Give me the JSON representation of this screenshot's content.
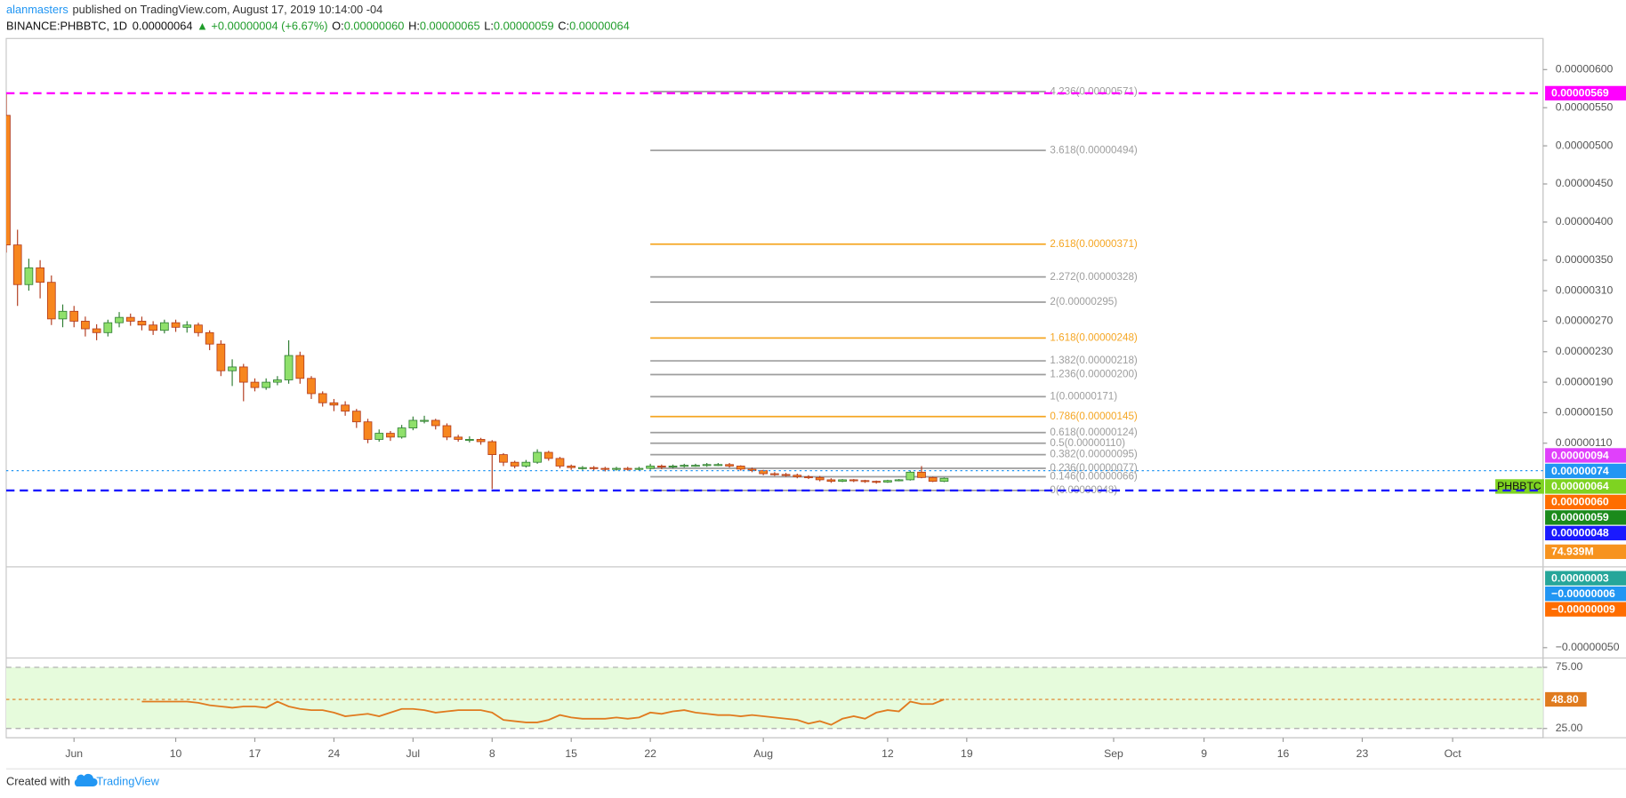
{
  "header": {
    "author": "alanmasters",
    "published": "published on TradingView.com, August 17, 2019 10:14:00 -04",
    "symbol": "BINANCE:PHBBTC, 1D",
    "last": "0.00000064",
    "change": "▲ +0.00000004 (+6.67%)",
    "o_label": "O:",
    "o": "0.00000060",
    "h_label": "H:",
    "h": "0.00000065",
    "l_label": "L:",
    "l": "0.00000059",
    "c_label": "C:",
    "c": "0.00000064"
  },
  "footer": {
    "created": "Created with",
    "brand": "TradingView"
  },
  "chart_data": [
    {
      "type": "candlestick",
      "x": [
        "2019-05-26",
        "2019-05-27",
        "2019-05-28",
        "2019-05-29",
        "2019-05-30",
        "2019-05-31",
        "2019-06-01",
        "2019-06-02",
        "2019-06-03",
        "2019-06-04",
        "2019-06-05",
        "2019-06-06",
        "2019-06-07",
        "2019-06-08",
        "2019-06-09",
        "2019-06-10",
        "2019-06-11",
        "2019-06-12",
        "2019-06-13",
        "2019-06-14",
        "2019-06-15",
        "2019-06-16",
        "2019-06-17",
        "2019-06-18",
        "2019-06-19",
        "2019-06-20",
        "2019-06-21",
        "2019-06-22",
        "2019-06-23",
        "2019-06-24",
        "2019-06-25",
        "2019-06-26",
        "2019-06-27",
        "2019-06-28",
        "2019-06-29",
        "2019-06-30",
        "2019-07-01",
        "2019-07-02",
        "2019-07-03",
        "2019-07-04",
        "2019-07-05",
        "2019-07-06",
        "2019-07-07",
        "2019-07-08",
        "2019-07-09",
        "2019-07-10",
        "2019-07-11",
        "2019-07-12",
        "2019-07-13",
        "2019-07-14",
        "2019-07-15",
        "2019-07-16",
        "2019-07-17",
        "2019-07-18",
        "2019-07-19",
        "2019-07-20",
        "2019-07-21",
        "2019-07-22",
        "2019-07-23",
        "2019-07-24",
        "2019-07-25",
        "2019-07-26",
        "2019-07-27",
        "2019-07-28",
        "2019-07-29",
        "2019-07-30",
        "2019-07-31",
        "2019-08-01",
        "2019-08-02",
        "2019-08-03",
        "2019-08-04",
        "2019-08-05",
        "2019-08-06",
        "2019-08-07",
        "2019-08-08",
        "2019-08-09",
        "2019-08-10",
        "2019-08-11",
        "2019-08-12",
        "2019-08-13",
        "2019-08-14",
        "2019-08-15",
        "2019-08-16",
        "2019-08-17"
      ],
      "open": [
        5.4e-06,
        3.7e-06,
        3.18e-06,
        3.4e-06,
        3.21e-06,
        2.73e-06,
        2.83e-06,
        2.7e-06,
        2.6e-06,
        2.55e-06,
        2.68e-06,
        2.75e-06,
        2.7e-06,
        2.65e-06,
        2.58e-06,
        2.68e-06,
        2.62e-06,
        2.65e-06,
        2.55e-06,
        2.4e-06,
        2.05e-06,
        2.1e-06,
        1.9e-06,
        1.83e-06,
        1.9e-06,
        1.93e-06,
        2.25e-06,
        1.95e-06,
        1.75e-06,
        1.63e-06,
        1.6e-06,
        1.52e-06,
        1.38e-06,
        1.15e-06,
        1.23e-06,
        1.18e-06,
        1.3e-06,
        1.4e-06,
        1.4e-06,
        1.33e-06,
        1.18e-06,
        1.15e-06,
        1.15e-06,
        1.12e-06,
        9.5e-07,
        8.5e-07,
        8e-07,
        8.5e-07,
        9.8e-07,
        9e-07,
        8e-07,
        7.8e-07,
        7.8e-07,
        7.7e-07,
        7.6e-07,
        7.7e-07,
        7.6e-07,
        7.7e-07,
        8e-07,
        7.9e-07,
        8e-07,
        8.1e-07,
        8.1e-07,
        8.2e-07,
        8.2e-07,
        8e-07,
        7.6e-07,
        7.4e-07,
        7e-07,
        6.9e-07,
        6.8e-07,
        6.6e-07,
        6.5e-07,
        6.2e-07,
        6e-07,
        6.2e-07,
        6.1e-07,
        6e-07,
        5.9e-07,
        6.1e-07,
        6.2e-07,
        7.2e-07,
        6.5e-07,
        6e-07
      ],
      "high": [
        5.69e-06,
        3.9e-06,
        3.52e-06,
        3.5e-06,
        3.3e-06,
        2.92e-06,
        2.9e-06,
        2.76e-06,
        2.66e-06,
        2.72e-06,
        2.82e-06,
        2.8e-06,
        2.76e-06,
        2.7e-06,
        2.72e-06,
        2.72e-06,
        2.7e-06,
        2.68e-06,
        2.58e-06,
        2.45e-06,
        2.2e-06,
        2.14e-06,
        1.95e-06,
        1.95e-06,
        1.98e-06,
        2.45e-06,
        2.3e-06,
        1.98e-06,
        1.78e-06,
        1.68e-06,
        1.65e-06,
        1.55e-06,
        1.42e-06,
        1.28e-06,
        1.26e-06,
        1.34e-06,
        1.45e-06,
        1.46e-06,
        1.42e-06,
        1.36e-06,
        1.21e-06,
        1.19e-06,
        1.17e-06,
        1.14e-06,
        9.7e-07,
        8.7e-07,
        8.8e-07,
        1.02e-06,
        1e-06,
        9.2e-07,
        8.2e-07,
        8e-07,
        8e-07,
        7.9e-07,
        7.9e-07,
        7.9e-07,
        7.9e-07,
        8.3e-07,
        8.2e-07,
        8.2e-07,
        8.3e-07,
        8.3e-07,
        8.4e-07,
        8.4e-07,
        8.4e-07,
        8.1e-07,
        7.8e-07,
        7.5e-07,
        7.2e-07,
        7.1e-07,
        7e-07,
        6.8e-07,
        6.7e-07,
        6.4e-07,
        6.3e-07,
        6.3e-07,
        6.2e-07,
        6.1e-07,
        6.2e-07,
        6.3e-07,
        7.4e-07,
        8e-07,
        6.6e-07,
        6.5e-07
      ],
      "low": [
        3.6e-06,
        2.9e-06,
        3.1e-06,
        3e-06,
        2.65e-06,
        2.62e-06,
        2.62e-06,
        2.5e-06,
        2.45e-06,
        2.5e-06,
        2.62e-06,
        2.64e-06,
        2.58e-06,
        2.52e-06,
        2.54e-06,
        2.56e-06,
        2.55e-06,
        2.5e-06,
        2.32e-06,
        1.98e-06,
        1.85e-06,
        1.65e-06,
        1.78e-06,
        1.8e-06,
        1.86e-06,
        1.88e-06,
        1.88e-06,
        1.68e-06,
        1.58e-06,
        1.52e-06,
        1.46e-06,
        1.3e-06,
        1.1e-06,
        1.12e-06,
        1.13e-06,
        1.16e-06,
        1.27e-06,
        1.36e-06,
        1.28e-06,
        1.14e-06,
        1.12e-06,
        1.11e-06,
        1.08e-06,
        5e-07,
        8e-07,
        7.7e-07,
        7.8e-07,
        8.3e-07,
        8.7e-07,
        7.7e-07,
        7.5e-07,
        7.5e-07,
        7.4e-07,
        7.3e-07,
        7.4e-07,
        7.4e-07,
        7.4e-07,
        7.5e-07,
        7.6e-07,
        7.7e-07,
        7.8e-07,
        7.9e-07,
        7.9e-07,
        8e-07,
        7.8e-07,
        7.4e-07,
        7.2e-07,
        6.8e-07,
        6.7e-07,
        6.6e-07,
        6.4e-07,
        6.3e-07,
        6e-07,
        5.8e-07,
        5.9e-07,
        5.9e-07,
        5.8e-07,
        5.7e-07,
        5.8e-07,
        6e-07,
        6.1e-07,
        6.4e-07,
        5.9e-07,
        5.9e-07
      ],
      "close": [
        3.7e-06,
        3.18e-06,
        3.4e-06,
        3.21e-06,
        2.73e-06,
        2.83e-06,
        2.7e-06,
        2.6e-06,
        2.55e-06,
        2.68e-06,
        2.75e-06,
        2.7e-06,
        2.65e-06,
        2.58e-06,
        2.68e-06,
        2.62e-06,
        2.65e-06,
        2.55e-06,
        2.4e-06,
        2.05e-06,
        2.1e-06,
        1.9e-06,
        1.83e-06,
        1.9e-06,
        1.93e-06,
        2.25e-06,
        1.95e-06,
        1.75e-06,
        1.63e-06,
        1.6e-06,
        1.52e-06,
        1.38e-06,
        1.15e-06,
        1.23e-06,
        1.18e-06,
        1.3e-06,
        1.4e-06,
        1.4e-06,
        1.33e-06,
        1.18e-06,
        1.15e-06,
        1.15e-06,
        1.12e-06,
        9.5e-07,
        8.5e-07,
        8e-07,
        8.5e-07,
        9.8e-07,
        9e-07,
        8e-07,
        7.8e-07,
        7.8e-07,
        7.7e-07,
        7.6e-07,
        7.7e-07,
        7.6e-07,
        7.7e-07,
        8e-07,
        7.9e-07,
        8e-07,
        8.1e-07,
        8.1e-07,
        8.2e-07,
        8.2e-07,
        8e-07,
        7.6e-07,
        7.4e-07,
        7e-07,
        6.9e-07,
        6.8e-07,
        6.6e-07,
        6.5e-07,
        6.2e-07,
        6e-07,
        6.2e-07,
        6.1e-07,
        6e-07,
        5.9e-07,
        6.1e-07,
        6.2e-07,
        7.2e-07,
        6.5e-07,
        6e-07,
        6.4e-07
      ],
      "up_color": "#8fe06b",
      "down_color": "#f7861f",
      "xlim": [
        "2019-05-26",
        "2019-10-09"
      ],
      "xticks": [
        {
          "value": "2019-06-01",
          "label": "Jun"
        },
        {
          "value": "2019-06-10",
          "label": "10"
        },
        {
          "value": "2019-06-17",
          "label": "17"
        },
        {
          "value": "2019-06-24",
          "label": "24"
        },
        {
          "value": "2019-07-01",
          "label": "Jul"
        },
        {
          "value": "2019-07-08",
          "label": "8"
        },
        {
          "value": "2019-07-15",
          "label": "15"
        },
        {
          "value": "2019-07-22",
          "label": "22"
        },
        {
          "value": "2019-08-01",
          "label": "Aug"
        },
        {
          "value": "2019-08-12",
          "label": "12"
        },
        {
          "value": "2019-08-19",
          "label": "19"
        },
        {
          "value": "2019-09-01",
          "label": "Sep"
        },
        {
          "value": "2019-09-09",
          "label": "9"
        },
        {
          "value": "2019-09-16",
          "label": "16"
        },
        {
          "value": "2019-09-23",
          "label": "23"
        },
        {
          "value": "2019-10-01",
          "label": "Oct"
        }
      ],
      "ylim": [
        -5.08e-07,
        6.408e-06
      ],
      "yticks": [
        {
          "value": 6e-06,
          "label": "0.00000600"
        },
        {
          "value": 5.5e-06,
          "label": "0.00000550"
        },
        {
          "value": 5e-06,
          "label": "0.00000500"
        },
        {
          "value": 4.5e-06,
          "label": "0.00000450"
        },
        {
          "value": 4e-06,
          "label": "0.00000400"
        },
        {
          "value": 3.5e-06,
          "label": "0.00000350"
        },
        {
          "value": 3.1e-06,
          "label": "0.00000310"
        },
        {
          "value": 2.7e-06,
          "label": "0.00000270"
        },
        {
          "value": 2.3e-06,
          "label": "0.00000230"
        },
        {
          "value": 1.9e-06,
          "label": "0.00000190"
        },
        {
          "value": 1.5e-06,
          "label": "0.00000150"
        },
        {
          "value": 1.1e-06,
          "label": "0.00000110"
        }
      ],
      "fib_start": "2019-07-22",
      "fib_end": "2019-08-26",
      "fib_levels": [
        {
          "label": "4.236(0.00000571)",
          "value": 5.71e-06,
          "color": "#9e9e9e"
        },
        {
          "label": "3.618(0.00000494)",
          "value": 4.94e-06,
          "color": "#9e9e9e"
        },
        {
          "label": "2.618(0.00000371)",
          "value": 3.71e-06,
          "color": "#f5a623"
        },
        {
          "label": "2.272(0.00000328)",
          "value": 3.28e-06,
          "color": "#9e9e9e"
        },
        {
          "label": "2(0.00000295)",
          "value": 2.95e-06,
          "color": "#9e9e9e"
        },
        {
          "label": "1.618(0.00000248)",
          "value": 2.48e-06,
          "color": "#f5a623"
        },
        {
          "label": "1.382(0.00000218)",
          "value": 2.18e-06,
          "color": "#9e9e9e"
        },
        {
          "label": "1.236(0.00000200)",
          "value": 2e-06,
          "color": "#9e9e9e"
        },
        {
          "label": "1(0.00000171)",
          "value": 1.71e-06,
          "color": "#9e9e9e"
        },
        {
          "label": "0.786(0.00000145)",
          "value": 1.45e-06,
          "color": "#f5a623"
        },
        {
          "label": "0.618(0.00000124)",
          "value": 1.24e-06,
          "color": "#9e9e9e"
        },
        {
          "label": "0.5(0.00000110)",
          "value": 1.1e-06,
          "color": "#9e9e9e"
        },
        {
          "label": "0.382(0.00000095)",
          "value": 9.5e-07,
          "color": "#9e9e9e"
        },
        {
          "label": "0.236(0.00000077)",
          "value": 7.7e-07,
          "color": "#9e9e9e"
        },
        {
          "label": "0.146(0.00000066)",
          "value": 6.6e-07,
          "color": "#9e9e9e"
        },
        {
          "label": "0(0.00000048)",
          "value": 4.8e-07,
          "color": "#9e9e9e"
        }
      ],
      "price_labels": [
        {
          "value": 5.69e-06,
          "label": "0.00000569",
          "color": "#ff00ff",
          "line": "dashed"
        },
        {
          "value": 9.4e-07,
          "label": "0.00000094",
          "color": "#e040fb"
        },
        {
          "value": 7.4e-07,
          "label": "0.00000074",
          "color": "#2196f3",
          "line": "dotted"
        },
        {
          "value": 6.4e-07,
          "label": "0.00000064",
          "color": "#7ed321",
          "tag": "PHBBTC"
        },
        {
          "value": 6e-07,
          "label": "0.00000060",
          "color": "#ff6d00"
        },
        {
          "value": 5.9e-07,
          "label": "0.00000059",
          "color": "#1b8a1b"
        },
        {
          "value": 4.8e-07,
          "label": "0.00000048",
          "color": "#1a1aff",
          "line": "dashed"
        }
      ],
      "volume_label": {
        "label": "74.939M",
        "color": "#f7931e"
      }
    },
    {
      "type": "macd",
      "ylim": [
        -5.71e-07,
        1.09e-07
      ],
      "yticks": [
        {
          "value": -5e-07,
          "label": "−0.00000050"
        }
      ],
      "price_labels": [
        {
          "value": 3e-08,
          "label": "0.00000003",
          "color": "#26a69a"
        },
        {
          "value": -6e-08,
          "label": "−0.00000006",
          "color": "#2196f3"
        },
        {
          "value": -9e-08,
          "label": "−0.00000009",
          "color": "#ff6d00"
        }
      ]
    },
    {
      "type": "line",
      "color": "#e07b1f",
      "band_color": "#e6fbdc",
      "ylim": [
        17.4,
        81.8
      ],
      "yticks": [
        {
          "value": 75,
          "label": "75.00"
        },
        {
          "value": 25,
          "label": "25.00"
        }
      ],
      "values": [
        null,
        null,
        null,
        null,
        null,
        null,
        null,
        null,
        null,
        null,
        null,
        null,
        47,
        47,
        47,
        47,
        47,
        46,
        44,
        43,
        42,
        43,
        43,
        42,
        47,
        43,
        41,
        40,
        40,
        38,
        35,
        36,
        37,
        35,
        38,
        41,
        41,
        40,
        38,
        39,
        40,
        40,
        40,
        38,
        32,
        31,
        30,
        30,
        32,
        36,
        34,
        33,
        33,
        33,
        34,
        33,
        34,
        38,
        37,
        39,
        40,
        38,
        37,
        36,
        36,
        35,
        36,
        35,
        34,
        33,
        32,
        29,
        31,
        28,
        33,
        35,
        33,
        38,
        40,
        39,
        47,
        45,
        45,
        48.8
      ],
      "value_labels": [
        null,
        null,
        null,
        null,
        null,
        null,
        null,
        null,
        null,
        null,
        null,
        null,
        null,
        null,
        null,
        null,
        null,
        null,
        null,
        null,
        null,
        null,
        null,
        null,
        null,
        null,
        null,
        null,
        null,
        null,
        null,
        null,
        null,
        null,
        null,
        null,
        null,
        null,
        null,
        null,
        null,
        null,
        null,
        null,
        null,
        null,
        null,
        null,
        null,
        null,
        null,
        null,
        null,
        null,
        null,
        null,
        null,
        null,
        null,
        null,
        null,
        null,
        null,
        null,
        null,
        null,
        null,
        null,
        null,
        null,
        null,
        null,
        null,
        null,
        null,
        null,
        null,
        null,
        null,
        null,
        null,
        null,
        null,
        "48.80"
      ]
    }
  ]
}
